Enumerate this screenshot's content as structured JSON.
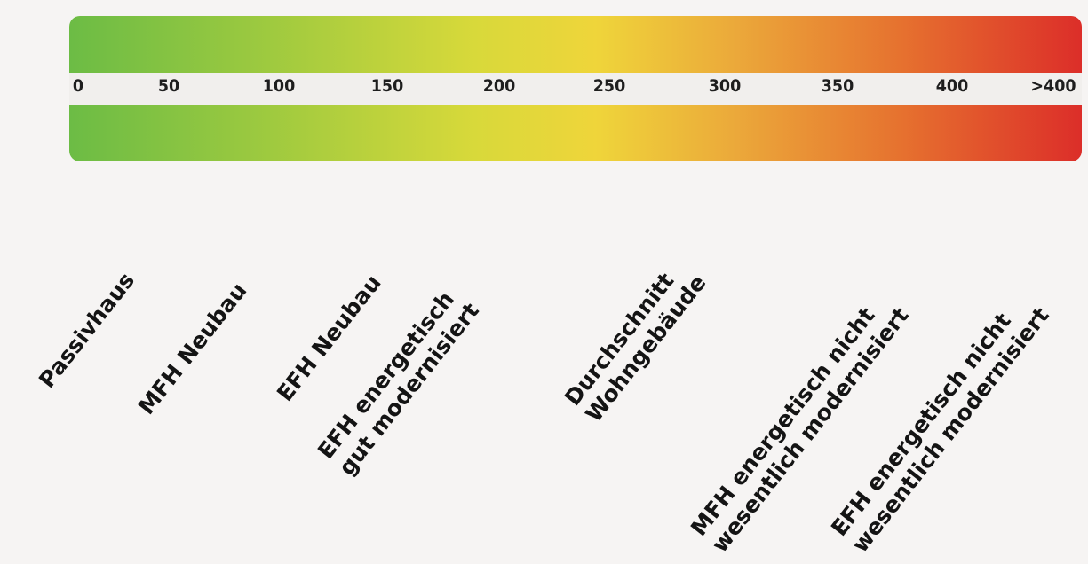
{
  "scale": {
    "ticks": [
      "0",
      "50",
      "100",
      "150",
      "200",
      "250",
      "300",
      "350",
      "400",
      ">400"
    ]
  },
  "categories": [
    {
      "lines": [
        "Passivhaus"
      ]
    },
    {
      "lines": [
        "MFH Neubau"
      ]
    },
    {
      "lines": [
        "EFH Neubau"
      ]
    },
    {
      "lines": [
        "EFH energetisch",
        "gut modernisiert"
      ]
    },
    {
      "lines": [
        "Durchschnitt",
        "Wohngebäude"
      ]
    },
    {
      "lines": [
        "MFH energetisch nicht",
        "wesentlich modernisiert"
      ]
    },
    {
      "lines": [
        "EFH energetisch nicht",
        "wesentlich modernisiert"
      ]
    }
  ]
}
